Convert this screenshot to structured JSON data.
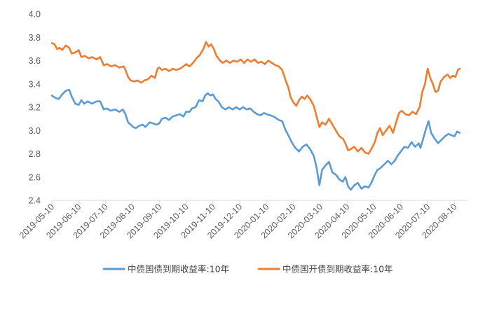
{
  "chart_data": {
    "type": "line",
    "ylim": [
      2.4,
      4.0
    ],
    "yticks": [
      "4.0",
      "3.8",
      "3.6",
      "3.4",
      "3.2",
      "3.0",
      "2.8",
      "2.6",
      "2.4"
    ],
    "xticks": [
      "2019-05-10",
      "2019-06-10",
      "2019-07-10",
      "2019-08-10",
      "2019-09-10",
      "2019-10-10",
      "2019-11-10",
      "2019-12-10",
      "2020-01-10",
      "2020-02-10",
      "2020-03-10",
      "2020-04-10",
      "2020-05-10",
      "2020-06-10",
      "2020-07-10",
      "2020-08-10"
    ],
    "xlim": [
      "2019-05-10",
      "2020-08-16"
    ],
    "grid": false,
    "legend": "bottom",
    "series": [
      {
        "name": "中债国债到期收益率:10年",
        "color": "#5B9BD5",
        "points": [
          [
            "2019-05-10",
            3.3
          ],
          [
            "2019-05-14",
            3.28
          ],
          [
            "2019-05-18",
            3.27
          ],
          [
            "2019-05-22",
            3.31
          ],
          [
            "2019-05-26",
            3.34
          ],
          [
            "2019-05-30",
            3.35
          ],
          [
            "2019-06-02",
            3.29
          ],
          [
            "2019-06-06",
            3.23
          ],
          [
            "2019-06-10",
            3.22
          ],
          [
            "2019-06-13",
            3.26
          ],
          [
            "2019-06-16",
            3.23
          ],
          [
            "2019-06-20",
            3.25
          ],
          [
            "2019-06-25",
            3.23
          ],
          [
            "2019-06-30",
            3.25
          ],
          [
            "2019-07-04",
            3.25
          ],
          [
            "2019-07-08",
            3.18
          ],
          [
            "2019-07-11",
            3.19
          ],
          [
            "2019-07-16",
            3.17
          ],
          [
            "2019-07-21",
            3.18
          ],
          [
            "2019-07-26",
            3.16
          ],
          [
            "2019-07-30",
            3.18
          ],
          [
            "2019-08-02",
            3.14
          ],
          [
            "2019-08-05",
            3.07
          ],
          [
            "2019-08-08",
            3.05
          ],
          [
            "2019-08-11",
            3.03
          ],
          [
            "2019-08-14",
            3.02
          ],
          [
            "2019-08-18",
            3.04
          ],
          [
            "2019-08-22",
            3.05
          ],
          [
            "2019-08-25",
            3.03
          ],
          [
            "2019-08-30",
            3.07
          ],
          [
            "2019-09-03",
            3.06
          ],
          [
            "2019-09-07",
            3.05
          ],
          [
            "2019-09-10",
            3.06
          ],
          [
            "2019-09-13",
            3.1
          ],
          [
            "2019-09-17",
            3.11
          ],
          [
            "2019-09-21",
            3.09
          ],
          [
            "2019-09-25",
            3.12
          ],
          [
            "2019-09-29",
            3.13
          ],
          [
            "2019-10-03",
            3.14
          ],
          [
            "2019-10-07",
            3.12
          ],
          [
            "2019-10-10",
            3.16
          ],
          [
            "2019-10-14",
            3.16
          ],
          [
            "2019-10-17",
            3.19
          ],
          [
            "2019-10-21",
            3.2
          ],
          [
            "2019-10-25",
            3.26
          ],
          [
            "2019-10-29",
            3.25
          ],
          [
            "2019-11-01",
            3.3
          ],
          [
            "2019-11-04",
            3.32
          ],
          [
            "2019-11-07",
            3.3
          ],
          [
            "2019-11-10",
            3.31
          ],
          [
            "2019-11-13",
            3.27
          ],
          [
            "2019-11-16",
            3.25
          ],
          [
            "2019-11-20",
            3.2
          ],
          [
            "2019-11-24",
            3.18
          ],
          [
            "2019-11-28",
            3.2
          ],
          [
            "2019-12-02",
            3.18
          ],
          [
            "2019-12-06",
            3.2
          ],
          [
            "2019-12-10",
            3.18
          ],
          [
            "2019-12-14",
            3.2
          ],
          [
            "2019-12-18",
            3.18
          ],
          [
            "2019-12-22",
            3.19
          ],
          [
            "2019-12-26",
            3.16
          ],
          [
            "2019-12-30",
            3.14
          ],
          [
            "2020-01-03",
            3.13
          ],
          [
            "2020-01-07",
            3.15
          ],
          [
            "2020-01-10",
            3.14
          ],
          [
            "2020-01-14",
            3.13
          ],
          [
            "2020-01-18",
            3.12
          ],
          [
            "2020-01-22",
            3.1
          ],
          [
            "2020-01-24",
            3.09
          ],
          [
            "2020-01-28",
            3.08
          ],
          [
            "2020-02-01",
            3.0
          ],
          [
            "2020-02-04",
            2.96
          ],
          [
            "2020-02-08",
            2.9
          ],
          [
            "2020-02-12",
            2.85
          ],
          [
            "2020-02-16",
            2.82
          ],
          [
            "2020-02-20",
            2.86
          ],
          [
            "2020-02-24",
            2.88
          ],
          [
            "2020-02-28",
            2.84
          ],
          [
            "2020-03-03",
            2.78
          ],
          [
            "2020-03-06",
            2.68
          ],
          [
            "2020-03-09",
            2.53
          ],
          [
            "2020-03-12",
            2.66
          ],
          [
            "2020-03-16",
            2.7
          ],
          [
            "2020-03-20",
            2.73
          ],
          [
            "2020-03-24",
            2.64
          ],
          [
            "2020-03-28",
            2.62
          ],
          [
            "2020-04-01",
            2.58
          ],
          [
            "2020-04-05",
            2.56
          ],
          [
            "2020-04-08",
            2.6
          ],
          [
            "2020-04-11",
            2.52
          ],
          [
            "2020-04-14",
            2.49
          ],
          [
            "2020-04-18",
            2.53
          ],
          [
            "2020-04-22",
            2.55
          ],
          [
            "2020-04-26",
            2.5
          ],
          [
            "2020-04-30",
            2.52
          ],
          [
            "2020-05-04",
            2.51
          ],
          [
            "2020-05-07",
            2.55
          ],
          [
            "2020-05-11",
            2.62
          ],
          [
            "2020-05-14",
            2.66
          ],
          [
            "2020-05-18",
            2.68
          ],
          [
            "2020-05-22",
            2.71
          ],
          [
            "2020-05-26",
            2.74
          ],
          [
            "2020-05-30",
            2.71
          ],
          [
            "2020-06-03",
            2.74
          ],
          [
            "2020-06-06",
            2.78
          ],
          [
            "2020-06-10",
            2.82
          ],
          [
            "2020-06-14",
            2.86
          ],
          [
            "2020-06-18",
            2.85
          ],
          [
            "2020-06-22",
            2.9
          ],
          [
            "2020-06-26",
            2.86
          ],
          [
            "2020-06-30",
            2.89
          ],
          [
            "2020-07-02",
            2.85
          ],
          [
            "2020-07-05",
            2.93
          ],
          [
            "2020-07-08",
            3.01
          ],
          [
            "2020-07-11",
            3.08
          ],
          [
            "2020-07-14",
            2.98
          ],
          [
            "2020-07-18",
            2.93
          ],
          [
            "2020-07-22",
            2.89
          ],
          [
            "2020-07-26",
            2.92
          ],
          [
            "2020-07-30",
            2.95
          ],
          [
            "2020-08-03",
            2.97
          ],
          [
            "2020-08-06",
            2.96
          ],
          [
            "2020-08-10",
            2.95
          ],
          [
            "2020-08-13",
            2.99
          ],
          [
            "2020-08-16",
            2.98
          ]
        ]
      },
      {
        "name": "中债国开债到期收益率:10年",
        "color": "#ED7D31",
        "points": [
          [
            "2019-05-10",
            3.75
          ],
          [
            "2019-05-13",
            3.74
          ],
          [
            "2019-05-16",
            3.7
          ],
          [
            "2019-05-19",
            3.71
          ],
          [
            "2019-05-22",
            3.69
          ],
          [
            "2019-05-26",
            3.73
          ],
          [
            "2019-05-30",
            3.71
          ],
          [
            "2019-06-02",
            3.66
          ],
          [
            "2019-06-06",
            3.67
          ],
          [
            "2019-06-10",
            3.69
          ],
          [
            "2019-06-13",
            3.63
          ],
          [
            "2019-06-17",
            3.64
          ],
          [
            "2019-06-21",
            3.62
          ],
          [
            "2019-06-25",
            3.63
          ],
          [
            "2019-06-30",
            3.61
          ],
          [
            "2019-07-04",
            3.63
          ],
          [
            "2019-07-08",
            3.56
          ],
          [
            "2019-07-12",
            3.57
          ],
          [
            "2019-07-16",
            3.55
          ],
          [
            "2019-07-21",
            3.56
          ],
          [
            "2019-07-26",
            3.54
          ],
          [
            "2019-07-31",
            3.55
          ],
          [
            "2019-08-02",
            3.52
          ],
          [
            "2019-08-05",
            3.46
          ],
          [
            "2019-08-08",
            3.43
          ],
          [
            "2019-08-12",
            3.42
          ],
          [
            "2019-08-16",
            3.43
          ],
          [
            "2019-08-20",
            3.41
          ],
          [
            "2019-08-24",
            3.43
          ],
          [
            "2019-08-28",
            3.44
          ],
          [
            "2019-09-01",
            3.47
          ],
          [
            "2019-09-05",
            3.45
          ],
          [
            "2019-09-08",
            3.53
          ],
          [
            "2019-09-10",
            3.54
          ],
          [
            "2019-09-13",
            3.52
          ],
          [
            "2019-09-17",
            3.53
          ],
          [
            "2019-09-21",
            3.51
          ],
          [
            "2019-09-25",
            3.53
          ],
          [
            "2019-09-29",
            3.52
          ],
          [
            "2019-10-03",
            3.53
          ],
          [
            "2019-10-07",
            3.55
          ],
          [
            "2019-10-10",
            3.57
          ],
          [
            "2019-10-14",
            3.55
          ],
          [
            "2019-10-18",
            3.58
          ],
          [
            "2019-10-22",
            3.62
          ],
          [
            "2019-10-26",
            3.65
          ],
          [
            "2019-10-30",
            3.7
          ],
          [
            "2019-11-02",
            3.76
          ],
          [
            "2019-11-05",
            3.72
          ],
          [
            "2019-11-08",
            3.74
          ],
          [
            "2019-11-11",
            3.7
          ],
          [
            "2019-11-14",
            3.64
          ],
          [
            "2019-11-18",
            3.6
          ],
          [
            "2019-11-21",
            3.58
          ],
          [
            "2019-11-25",
            3.6
          ],
          [
            "2019-11-29",
            3.58
          ],
          [
            "2019-12-03",
            3.6
          ],
          [
            "2019-12-07",
            3.59
          ],
          [
            "2019-12-11",
            3.61
          ],
          [
            "2019-12-15",
            3.58
          ],
          [
            "2019-12-19",
            3.61
          ],
          [
            "2019-12-23",
            3.59
          ],
          [
            "2019-12-27",
            3.61
          ],
          [
            "2019-12-31",
            3.58
          ],
          [
            "2020-01-04",
            3.59
          ],
          [
            "2020-01-08",
            3.57
          ],
          [
            "2020-01-12",
            3.6
          ],
          [
            "2020-01-16",
            3.58
          ],
          [
            "2020-01-20",
            3.56
          ],
          [
            "2020-01-24",
            3.55
          ],
          [
            "2020-01-28",
            3.52
          ],
          [
            "2020-02-01",
            3.43
          ],
          [
            "2020-02-04",
            3.37
          ],
          [
            "2020-02-07",
            3.28
          ],
          [
            "2020-02-10",
            3.24
          ],
          [
            "2020-02-13",
            3.21
          ],
          [
            "2020-02-16",
            3.26
          ],
          [
            "2020-02-19",
            3.29
          ],
          [
            "2020-02-22",
            3.27
          ],
          [
            "2020-02-25",
            3.3
          ],
          [
            "2020-02-28",
            3.27
          ],
          [
            "2020-03-03",
            3.21
          ],
          [
            "2020-03-06",
            3.12
          ],
          [
            "2020-03-09",
            3.03
          ],
          [
            "2020-03-12",
            3.07
          ],
          [
            "2020-03-16",
            3.05
          ],
          [
            "2020-03-20",
            3.1
          ],
          [
            "2020-03-24",
            3.05
          ],
          [
            "2020-03-28",
            3.0
          ],
          [
            "2020-04-01",
            2.95
          ],
          [
            "2020-04-05",
            2.93
          ],
          [
            "2020-04-08",
            2.89
          ],
          [
            "2020-04-11",
            2.83
          ],
          [
            "2020-04-14",
            2.84
          ],
          [
            "2020-04-18",
            2.86
          ],
          [
            "2020-04-22",
            2.82
          ],
          [
            "2020-04-26",
            2.85
          ],
          [
            "2020-04-30",
            2.81
          ],
          [
            "2020-05-04",
            2.8
          ],
          [
            "2020-05-07",
            2.84
          ],
          [
            "2020-05-11",
            2.9
          ],
          [
            "2020-05-14",
            2.98
          ],
          [
            "2020-05-17",
            3.02
          ],
          [
            "2020-05-20",
            2.96
          ],
          [
            "2020-05-24",
            3.0
          ],
          [
            "2020-05-28",
            3.04
          ],
          [
            "2020-06-01",
            2.98
          ],
          [
            "2020-06-05",
            3.08
          ],
          [
            "2020-06-08",
            3.15
          ],
          [
            "2020-06-11",
            3.17
          ],
          [
            "2020-06-15",
            3.14
          ],
          [
            "2020-06-19",
            3.13
          ],
          [
            "2020-06-23",
            3.16
          ],
          [
            "2020-06-27",
            3.14
          ],
          [
            "2020-07-01",
            3.2
          ],
          [
            "2020-07-04",
            3.33
          ],
          [
            "2020-07-07",
            3.4
          ],
          [
            "2020-07-10",
            3.53
          ],
          [
            "2020-07-13",
            3.45
          ],
          [
            "2020-07-16",
            3.4
          ],
          [
            "2020-07-19",
            3.33
          ],
          [
            "2020-07-22",
            3.34
          ],
          [
            "2020-07-25",
            3.42
          ],
          [
            "2020-07-29",
            3.46
          ],
          [
            "2020-08-02",
            3.48
          ],
          [
            "2020-08-05",
            3.45
          ],
          [
            "2020-08-08",
            3.47
          ],
          [
            "2020-08-11",
            3.46
          ],
          [
            "2020-08-14",
            3.52
          ],
          [
            "2020-08-16",
            3.53
          ]
        ]
      }
    ]
  }
}
